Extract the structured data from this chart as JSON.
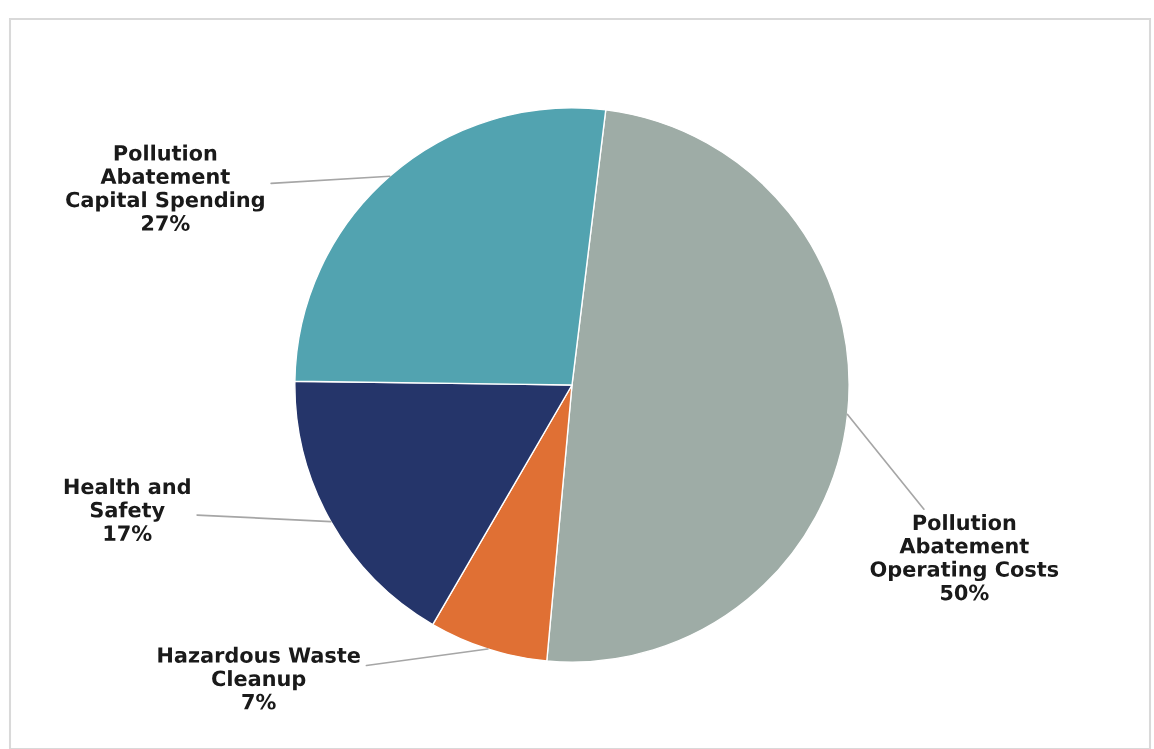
{
  "chart_data": {
    "type": "pie",
    "categories": [
      "Pollution\nAbatement\nOperating Costs",
      "Hazardous Waste\nCleanup",
      "Health and\nSafety",
      "Pollution\nAbatement\nCapital Spending"
    ],
    "values": [
      50,
      7,
      17,
      27
    ],
    "colors": [
      "#9eaca6",
      "#e07034",
      "#25356a",
      "#52a3b0"
    ],
    "value_labels": [
      "50%",
      "7%",
      "17%",
      "27%"
    ],
    "legend": false
  }
}
